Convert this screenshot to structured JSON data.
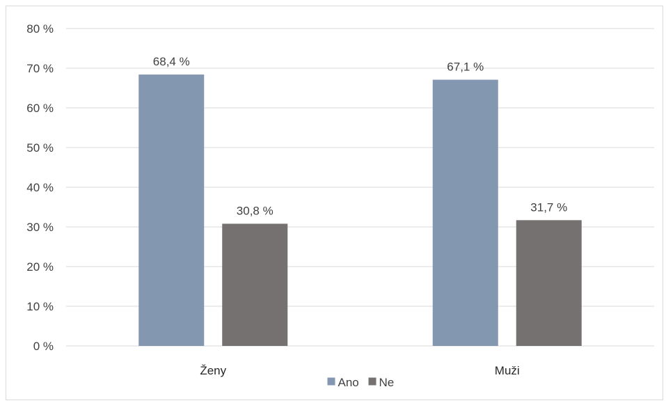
{
  "chart_data": {
    "type": "bar",
    "categories": [
      "Ženy",
      "Muži"
    ],
    "series": [
      {
        "name": "Ano",
        "values": [
          68.4,
          67.1
        ],
        "labels": [
          "68,4  %",
          "67,1 %"
        ],
        "color": "#8497b0"
      },
      {
        "name": "Ne",
        "values": [
          30.8,
          31.7
        ],
        "labels": [
          "30,8  %",
          "31,7 %"
        ],
        "color": "#767171"
      }
    ],
    "ylim": [
      0,
      80
    ],
    "yticks": [
      0,
      10,
      20,
      30,
      40,
      50,
      60,
      70,
      80
    ],
    "ytick_labels": [
      "0 %",
      "10 %",
      "20 %",
      "30 %",
      "40 %",
      "50 %",
      "60 %",
      "70 %",
      "80 %"
    ],
    "grid": true,
    "legend_position": "bottom"
  }
}
